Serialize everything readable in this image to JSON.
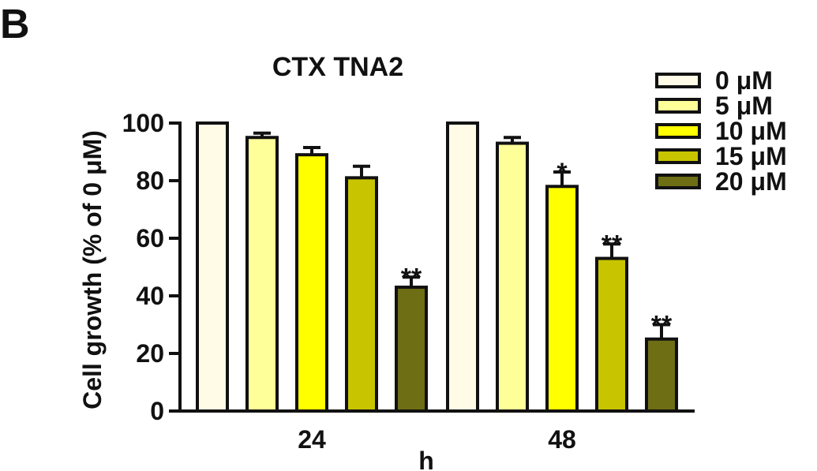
{
  "panel_label": "B",
  "chart_data": {
    "type": "bar",
    "title": "CTX TNA2",
    "xlabel": "h",
    "ylabel": "Cell growth (% of 0 μM)",
    "ylim": [
      0,
      100
    ],
    "yticks": [
      "0",
      "20",
      "40",
      "60",
      "80",
      "100"
    ],
    "categories": [
      "24",
      "48"
    ],
    "grid": false,
    "legend_position": "top-right",
    "series": [
      {
        "name": "0 μM",
        "color": "#fffbe6",
        "values": [
          100,
          100
        ],
        "errors": [
          0,
          0
        ],
        "significance": [
          "",
          ""
        ]
      },
      {
        "name": "5 μM",
        "color": "#ffff99",
        "values": [
          95,
          93
        ],
        "errors": [
          1.5,
          2
        ],
        "significance": [
          "",
          ""
        ]
      },
      {
        "name": "10 μM",
        "color": "#ffff00",
        "values": [
          89,
          78
        ],
        "errors": [
          2.5,
          5
        ],
        "significance": [
          "",
          "*"
        ]
      },
      {
        "name": "15 μM",
        "color": "#c8c400",
        "values": [
          81,
          53
        ],
        "errors": [
          4,
          5
        ],
        "significance": [
          "",
          "**"
        ]
      },
      {
        "name": "20 μM",
        "color": "#6e6e14",
        "values": [
          43,
          25
        ],
        "errors": [
          3.5,
          5
        ],
        "significance": [
          "**",
          "**"
        ]
      }
    ]
  }
}
